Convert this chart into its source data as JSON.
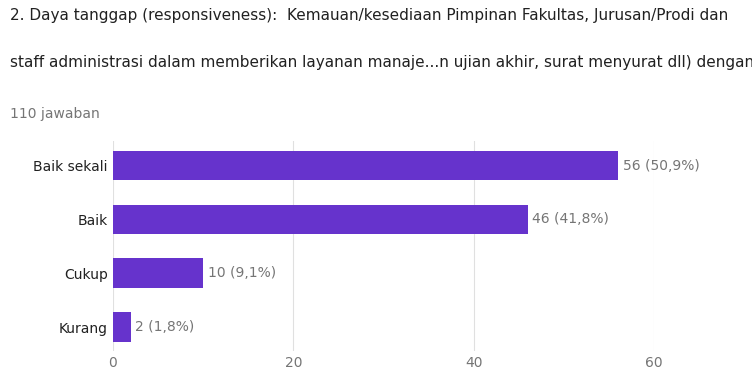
{
  "title_line1": "2. Daya tanggap (responsiveness):  Kemauan/kesediaan Pimpinan Fakultas, Jurusan/Prodi dan",
  "title_line2": "staff administrasi dalam memberikan layanan manaje...n ujian akhir, surat menyurat dll) dengan cepat.",
  "subtitle": "110 jawaban",
  "categories": [
    "Baik sekali",
    "Baik",
    "Cukup",
    "Kurang"
  ],
  "values": [
    56,
    46,
    10,
    2
  ],
  "labels": [
    "56 (50,9%)",
    "46 (41,8%)",
    "10 (9,1%)",
    "2 (1,8%)"
  ],
  "bar_color": "#6633cc",
  "background_color": "#ffffff",
  "xlim": [
    0,
    60
  ],
  "xticks": [
    0,
    20,
    40,
    60
  ],
  "grid_color": "#e0e0e0",
  "text_color": "#757575",
  "title_color": "#212121",
  "subtitle_color": "#757575",
  "bar_label_color": "#757575",
  "category_label_color": "#212121",
  "title_fontsize": 11.0,
  "subtitle_fontsize": 10,
  "category_fontsize": 10,
  "label_fontsize": 10,
  "tick_fontsize": 10,
  "bar_height": 0.55
}
